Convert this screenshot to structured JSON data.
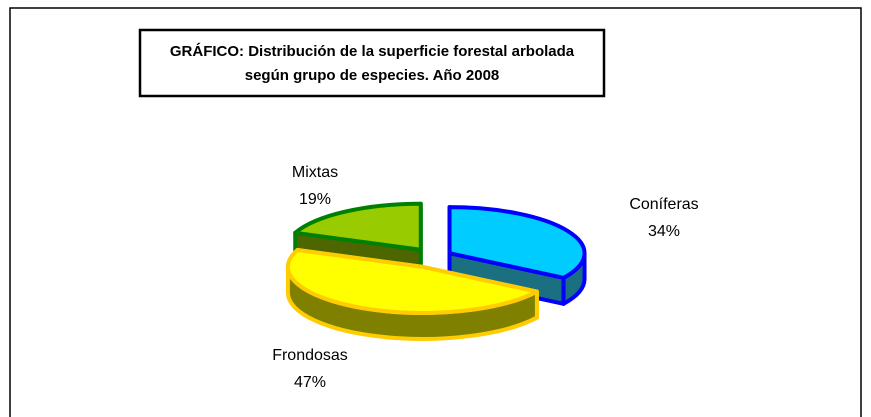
{
  "chart_data": {
    "type": "pie",
    "title": "GRÁFICO: Distribución de la superficie forestal arbolada",
    "subtitle": "según grupo de especies. Año 2008",
    "categories": [
      "Coníferas",
      "Frondosas",
      "Mixtas"
    ],
    "values": [
      34,
      47,
      19
    ],
    "value_labels": [
      "34%",
      "47%",
      "19%"
    ],
    "colors": [
      "#00ccff",
      "#ffff00",
      "#99cc00"
    ],
    "side_colors": [
      "#1a6f80",
      "#808000",
      "#4d6600"
    ],
    "edge_colors": [
      "#0000ff",
      "#ffcc00",
      "#008000"
    ]
  }
}
